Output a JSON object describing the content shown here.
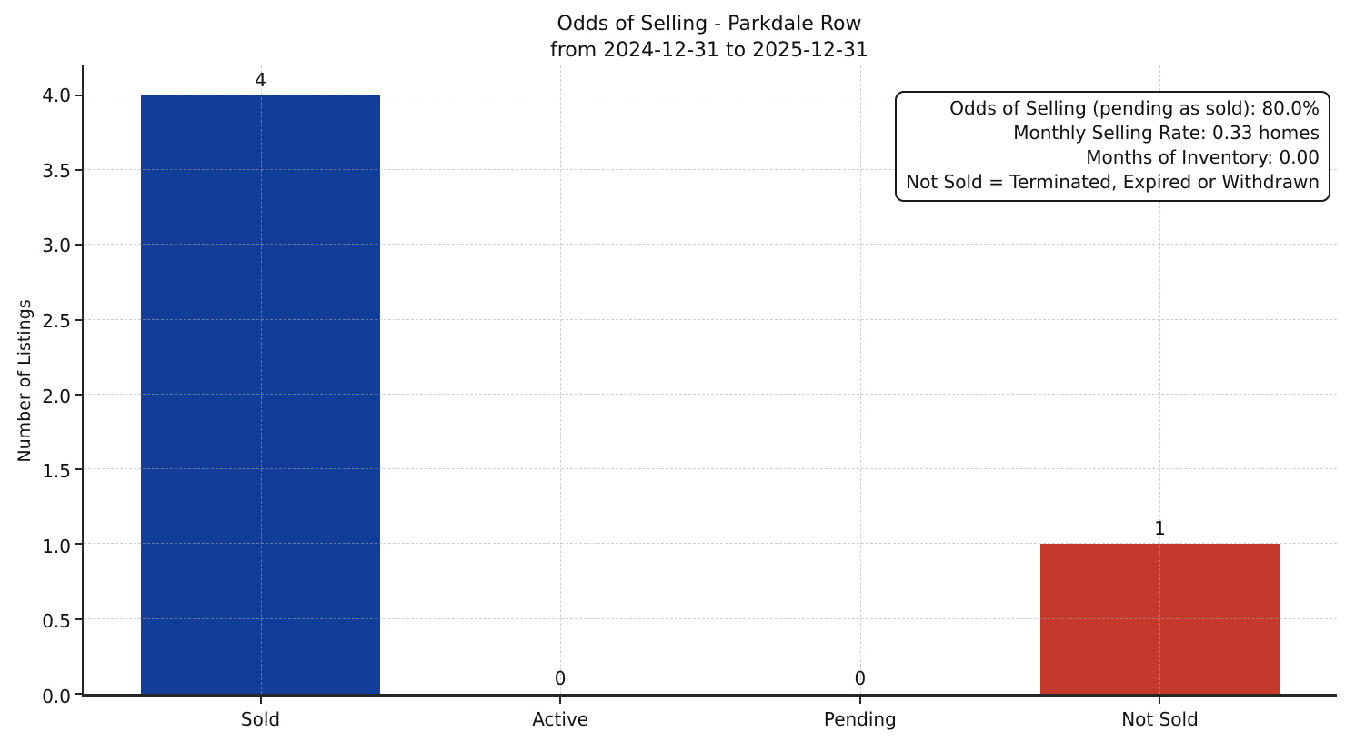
{
  "figure": {
    "title": "Odds of Selling - Parkdale Row",
    "subtitle": "from 2024-12-31 to 2025-12-31"
  },
  "annotation": {
    "lines": [
      "Odds of Selling (pending as sold): 80.0%",
      "Monthly Selling Rate: 0.33 homes",
      "Months of Inventory: 0.00",
      "Not Sold = Terminated, Expired or Withdrawn"
    ]
  },
  "chart_data": {
    "type": "bar",
    "title": "Odds of Selling - Parkdale Row",
    "subtitle": "from 2024-12-31 to 2025-12-31",
    "categories": [
      "Sold",
      "Active",
      "Pending",
      "Not Sold"
    ],
    "values": [
      4,
      0,
      0,
      1
    ],
    "value_labels": [
      "4",
      "0",
      "0",
      "1"
    ],
    "bar_colors": [
      "#123e9a",
      null,
      null,
      "#c4392b"
    ],
    "xlabel": "",
    "ylabel": "Number of Listings",
    "ylim": [
      0,
      4.2
    ],
    "yticks": [
      0,
      0.5,
      1,
      1.5,
      2,
      2.5,
      3,
      3.5,
      4
    ],
    "ytick_labels": [
      "0.0",
      "0.5",
      "1.0",
      "1.5",
      "2.0",
      "2.5",
      "3.0",
      "3.5",
      "4.0"
    ],
    "grid": {
      "style": "dashed",
      "horizontal": true,
      "vertical": true,
      "color": "#aaaaaa",
      "drawn_above_bars": true
    },
    "legend": "none",
    "colors": {
      "sold_bar": "#123e9a",
      "not_sold_bar": "#c4392b",
      "axis": "#262626",
      "text": "#111111",
      "background": "#ffffff"
    }
  }
}
